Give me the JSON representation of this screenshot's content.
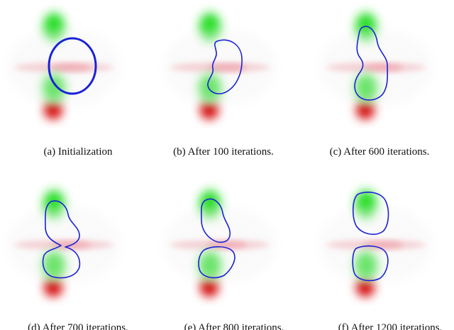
{
  "panels": [
    {
      "caption": "(a) Initialization"
    },
    {
      "caption": "(b) After 100 iterations."
    },
    {
      "caption": "(c) After 600 iterations."
    },
    {
      "caption": "(d) After 700 iterations."
    },
    {
      "caption": "(e) After 800 iterations."
    },
    {
      "caption": "(f) After 1200 iterations."
    }
  ]
}
